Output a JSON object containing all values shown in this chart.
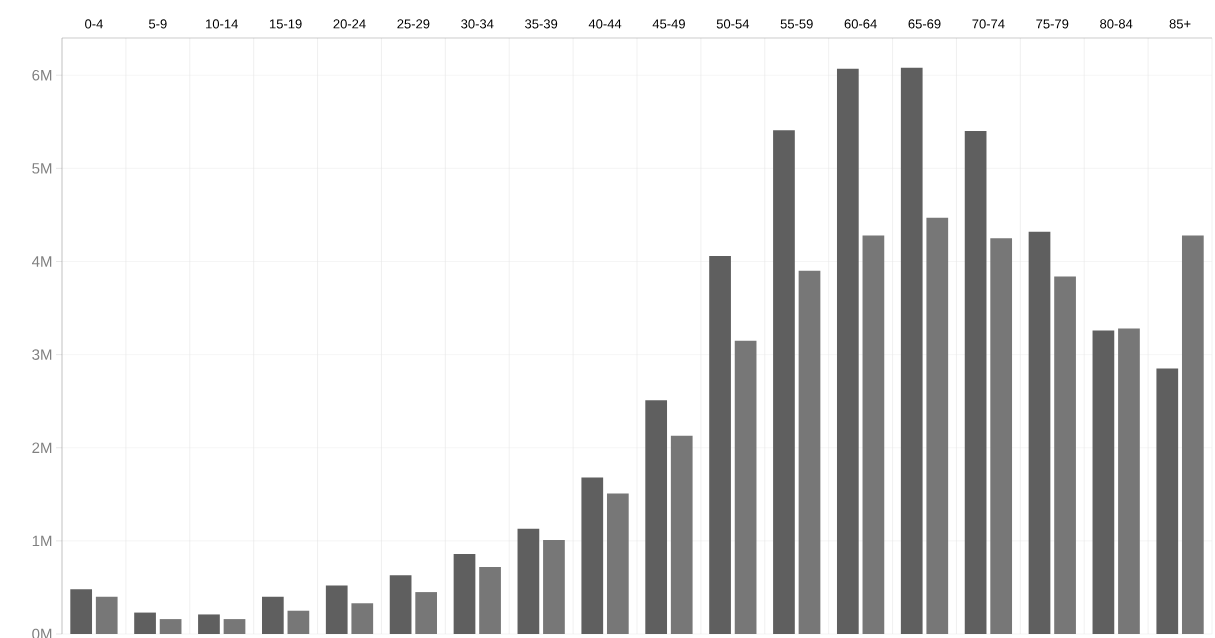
{
  "chart_data": {
    "type": "bar",
    "categories": [
      "0-4",
      "5-9",
      "10-14",
      "15-19",
      "20-24",
      "25-29",
      "30-34",
      "35-39",
      "40-44",
      "45-49",
      "50-54",
      "55-59",
      "60-64",
      "65-69",
      "70-74",
      "75-79",
      "80-84",
      "85+"
    ],
    "series": [
      {
        "color": "#5f5f5f",
        "values": [
          0.48,
          0.23,
          0.21,
          0.4,
          0.52,
          0.63,
          0.86,
          1.13,
          1.68,
          2.51,
          4.06,
          5.41,
          6.07,
          6.08,
          5.4,
          4.32,
          3.26,
          2.85
        ]
      },
      {
        "color": "#777777",
        "values": [
          0.4,
          0.16,
          0.16,
          0.25,
          0.33,
          0.45,
          0.72,
          1.01,
          1.51,
          2.13,
          3.15,
          3.9,
          4.28,
          4.47,
          4.25,
          3.84,
          3.28,
          4.28
        ]
      }
    ],
    "ylim": [
      0,
      6.4
    ],
    "yticks": [
      {
        "value": 0,
        "label": "0M"
      },
      {
        "value": 1,
        "label": "1M"
      },
      {
        "value": 2,
        "label": "2M"
      },
      {
        "value": 3,
        "label": "3M"
      },
      {
        "value": 4,
        "label": "4M"
      },
      {
        "value": 5,
        "label": "5M"
      },
      {
        "value": 6,
        "label": "6M"
      }
    ],
    "grid": true
  }
}
